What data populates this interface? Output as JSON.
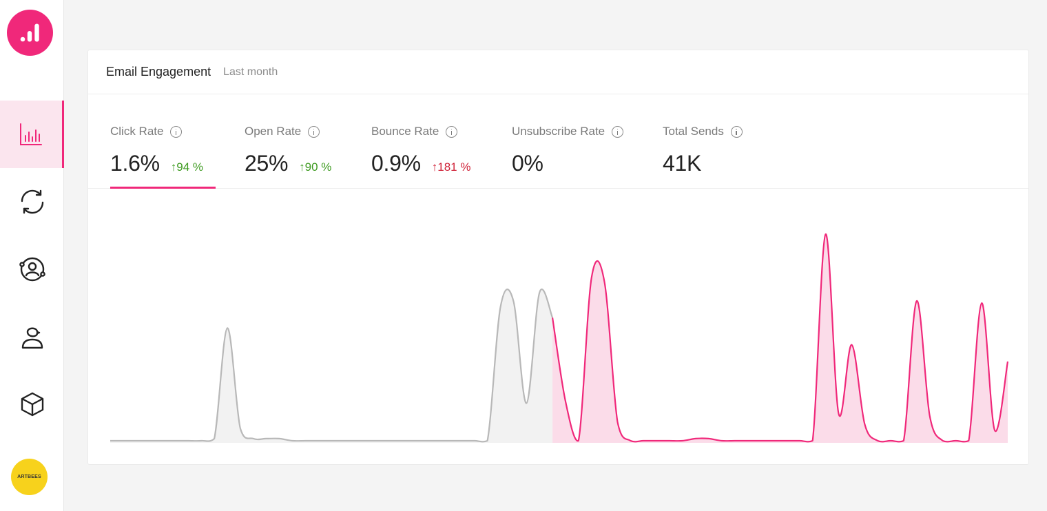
{
  "sidebar": {
    "items": [
      {
        "name": "analytics",
        "active": true
      },
      {
        "name": "sync",
        "active": false
      },
      {
        "name": "audience",
        "active": false
      },
      {
        "name": "user",
        "active": false
      },
      {
        "name": "products",
        "active": false
      }
    ],
    "avatar_label": "ARTBEES"
  },
  "card": {
    "title": "Email Engagement",
    "subtitle": "Last month"
  },
  "metrics": [
    {
      "label": "Click Rate",
      "value": "1.6%",
      "change": "↑94 %",
      "trend": "good",
      "selected": true
    },
    {
      "label": "Open Rate",
      "value": "25%",
      "change": "↑90 %",
      "trend": "good",
      "selected": false
    },
    {
      "label": "Bounce Rate",
      "value": "0.9%",
      "change": "↑181 %",
      "trend": "bad",
      "selected": false
    },
    {
      "label": "Unsubscribe Rate",
      "value": "0%",
      "change": "",
      "trend": "",
      "selected": false
    },
    {
      "label": "Total Sends",
      "value": "41K",
      "change": "",
      "trend": "",
      "selected": false
    }
  ],
  "colors": {
    "accent": "#f0287a",
    "accent_fill": "#fbdce9",
    "previous_line": "#b8b8b8",
    "previous_fill": "#f2f2f2",
    "good": "#3f9b22",
    "bad": "#d0243a"
  },
  "chart_data": {
    "type": "area",
    "series": [
      {
        "values": [
          0.01,
          0.01,
          0.01,
          0.01,
          0.01,
          0.01,
          0.01,
          0.01,
          0.02,
          0.55,
          0.07,
          0.02,
          0.02,
          0.02,
          0.01,
          0.01,
          0.01,
          0.01,
          0.01,
          0.01,
          0.01,
          0.01,
          0.01,
          0.01,
          0.01,
          0.01,
          0.01,
          0.01,
          0.01,
          0.01,
          0.65,
          0.68,
          0.19,
          0.72,
          0.6
        ]
      },
      {
        "values": [
          0.6,
          0.2,
          0.01,
          0.79,
          0.77,
          0.1,
          0.01,
          0.01,
          0.01,
          0.01,
          0.01,
          0.02,
          0.02,
          0.01,
          0.01,
          0.01,
          0.01,
          0.01,
          0.01,
          0.01,
          0.01,
          1.0,
          0.14,
          0.47,
          0.09,
          0.01,
          0.01,
          0.01,
          0.68,
          0.13,
          0.01,
          0.01,
          0.01,
          0.67,
          0.06,
          0.39
        ]
      }
    ],
    "ylim": [
      0,
      1.05
    ]
  }
}
